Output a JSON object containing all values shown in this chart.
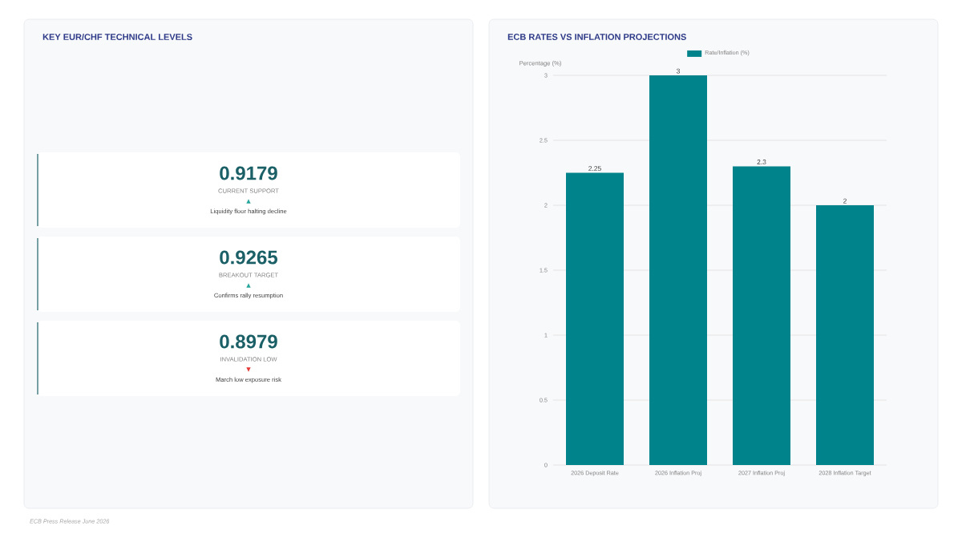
{
  "chart_data": [
    {
      "type": "other",
      "title": "KEY EUR/CHF TECHNICAL LEVELS",
      "annotations": [
        "0.9179",
        "CURRENT SUPPORT",
        "▲",
        "Liquidity floor halting decline",
        "0.9265",
        "BREAKOUT TARGET",
        "▲",
        "Confirms rally resumption",
        "0.8979",
        "INVALIDATION LOW",
        "▼",
        "March low exposure risk"
      ],
      "colors": [
        "#26a69a",
        "#26a69a",
        "#e53935"
      ]
    },
    {
      "type": "bar",
      "title": "ECB RATES VS INFLATION PROJECTIONS",
      "ylabel": "Percentage (%)",
      "categories": [
        "2026 Deposit Rate",
        "2026 Inflation Proj",
        "2027 Inflation Proj",
        "2028 Inflation Target"
      ],
      "series": [
        {
          "name": "Rate/Inflation (%)",
          "color": "#00838a",
          "values": [
            2.25,
            3,
            2.3,
            2
          ]
        }
      ],
      "ylim": [
        0,
        3
      ],
      "yticks": [
        0,
        0.5,
        1,
        1.5,
        2,
        2.5,
        3
      ],
      "grid": "y",
      "legend": "top",
      "data_labels": true,
      "annotations": [
        "ECB Press Release June 2026"
      ]
    }
  ]
}
